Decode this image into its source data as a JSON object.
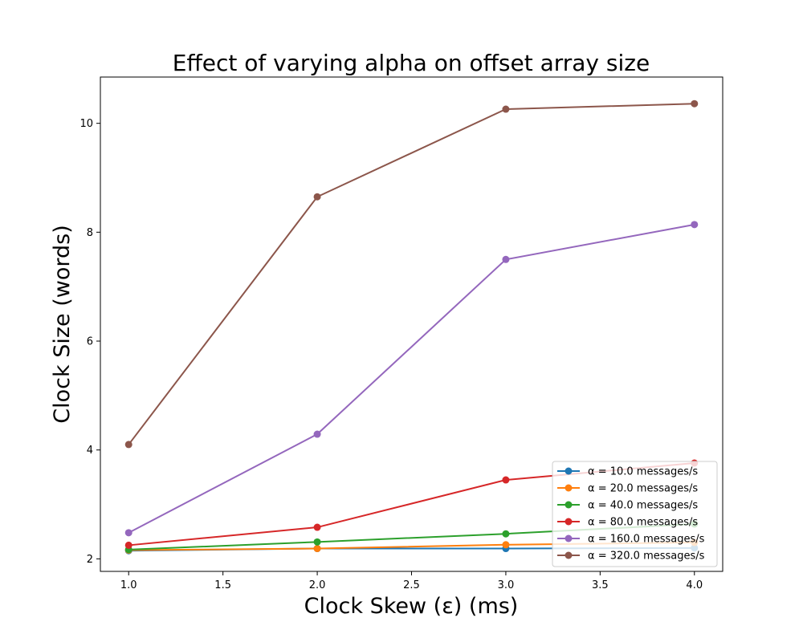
{
  "chart_data": {
    "type": "line",
    "title": "Effect of varying alpha on offset array size",
    "xlabel": "Clock Skew (ε) (ms)",
    "ylabel": "Clock Size (words)",
    "x": [
      1.0,
      2.0,
      3.0,
      4.0
    ],
    "xlim": [
      0.85,
      4.15
    ],
    "ylim": [
      1.77,
      10.85
    ],
    "xticks": [
      "1.0",
      "1.5",
      "2.0",
      "2.5",
      "3.0",
      "3.5",
      "4.0"
    ],
    "yticks": [
      "2",
      "4",
      "6",
      "8",
      "10"
    ],
    "grid": false,
    "legend_position": "lower-right",
    "series": [
      {
        "name": "α = 10.0 messages/s",
        "color": "#1f77b4",
        "values": [
          2.15,
          2.19,
          2.19,
          2.2
        ]
      },
      {
        "name": "α = 20.0 messages/s",
        "color": "#ff7f0e",
        "values": [
          2.16,
          2.19,
          2.26,
          2.3
        ]
      },
      {
        "name": "α = 40.0 messages/s",
        "color": "#2ca02c",
        "values": [
          2.17,
          2.31,
          2.46,
          2.64
        ]
      },
      {
        "name": "α = 80.0 messages/s",
        "color": "#d62728",
        "values": [
          2.25,
          2.58,
          3.45,
          3.76
        ]
      },
      {
        "name": "α = 160.0 messages/s",
        "color": "#9467bd",
        "values": [
          2.48,
          4.29,
          7.5,
          8.14
        ]
      },
      {
        "name": "α = 320.0 messages/s",
        "color": "#8c564b",
        "values": [
          4.1,
          8.65,
          10.26,
          10.36
        ]
      }
    ]
  }
}
